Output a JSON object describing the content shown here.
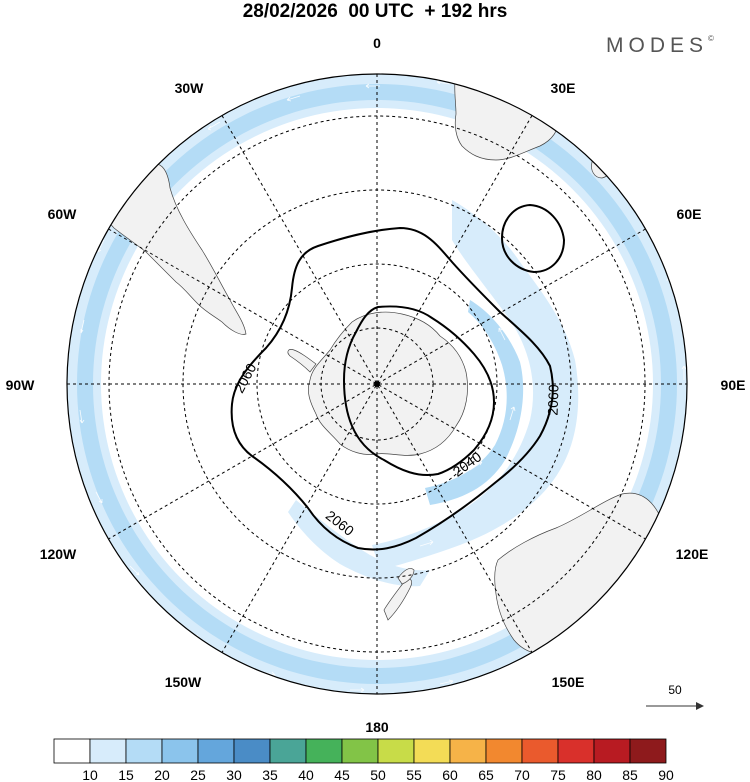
{
  "header": {
    "title": "28/02/2026  00 UTC  + 192 hrs"
  },
  "logo": {
    "text": "MODES",
    "mark": "©"
  },
  "map": {
    "projection": "south-polar-stereographic",
    "longitude_labels": {
      "n": "0",
      "ne30": "30E",
      "e60": "60E",
      "e90": "90E",
      "e120": "120E",
      "e150": "150E",
      "s": "180",
      "w150": "150W",
      "w120": "120W",
      "w90": "90W",
      "w60": "60W",
      "w30": "30W"
    },
    "contour_labels": [
      "2060",
      "2060",
      "2060",
      "2040"
    ],
    "reference_vector": {
      "label": "50"
    },
    "colors": {
      "land": "#f2f2f2",
      "ocean": "#ffffff",
      "jet_light": "#d7ecfb",
      "jet_medium": "#b4dcf6"
    }
  },
  "colorbar": {
    "ticks": [
      "10",
      "15",
      "20",
      "25",
      "30",
      "35",
      "40",
      "45",
      "50",
      "55",
      "60",
      "65",
      "70",
      "75",
      "80",
      "85",
      "90"
    ],
    "colors": [
      "#ffffff",
      "#d7ecfb",
      "#b4dcf6",
      "#8bc4ec",
      "#64a6dc",
      "#4a8cc6",
      "#4aa597",
      "#45b25a",
      "#82c447",
      "#c8dc48",
      "#f3dc56",
      "#f6b348",
      "#f2882f",
      "#ea5a2d",
      "#d9302b",
      "#b81b22",
      "#8e1a1c"
    ]
  }
}
